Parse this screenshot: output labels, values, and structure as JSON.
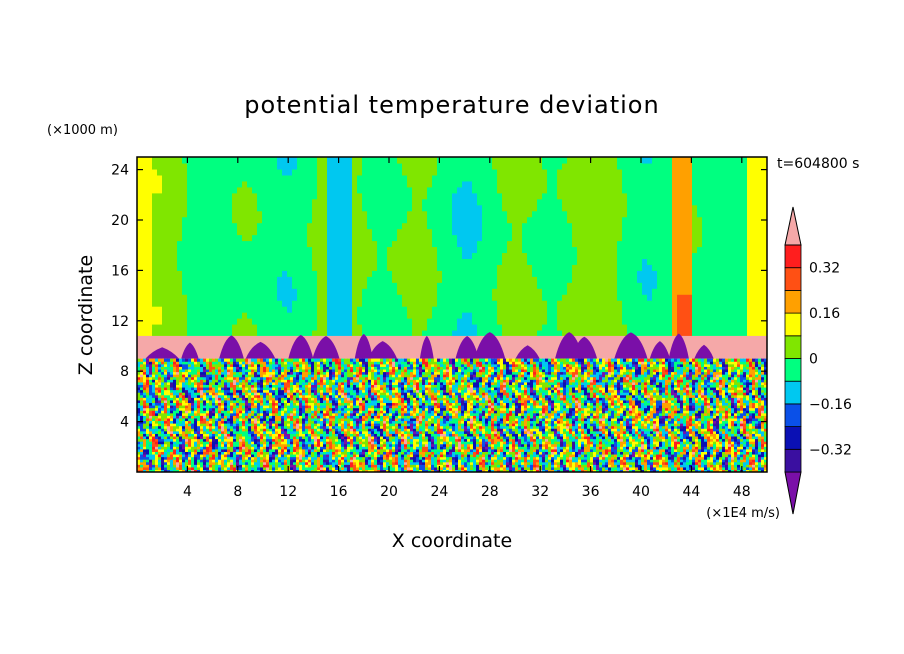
{
  "chart_data": {
    "type": "heatmap",
    "title": "potential temperature deviation",
    "xlabel": "X coordinate",
    "ylabel": "Z coordinate",
    "x_unit": "(×1E4 m/s)",
    "y_unit": "(×1000 m)",
    "time_label": "t=604800 s",
    "xlim": [
      0,
      50
    ],
    "ylim": [
      0,
      25
    ],
    "x_ticks": [
      4,
      8,
      12,
      16,
      20,
      24,
      28,
      32,
      36,
      40,
      44,
      48
    ],
    "y_ticks": [
      4,
      8,
      12,
      16,
      20,
      24
    ],
    "colorbar": {
      "levels": [
        -0.48,
        -0.4,
        -0.32,
        -0.24,
        -0.16,
        -0.08,
        0,
        0.08,
        0.16,
        0.24,
        0.32,
        0.4
      ],
      "colors": [
        "#7a0fa8",
        "#3a0fa0",
        "#0a10b4",
        "#0a50e8",
        "#00c8f0",
        "#00ff80",
        "#80e600",
        "#ffff00",
        "#ffa000",
        "#ff5014",
        "#ff1e1e",
        "#f5a8a8"
      ],
      "labels": [
        {
          "value": 0.32,
          "text": "0.32"
        },
        {
          "value": 0.16,
          "text": "0.16"
        },
        {
          "value": 0,
          "text": "0"
        },
        {
          "value": -0.16,
          "text": "−0.16"
        },
        {
          "value": -0.32,
          "text": "−0.32"
        }
      ]
    },
    "regions": {
      "stratosphere": {
        "z_range": [
          10.8,
          25
        ],
        "dominant_values": [
          0,
          0.05
        ],
        "features": [
          {
            "x_range": [
              0,
              1.2
            ],
            "value": 0.12
          },
          {
            "x_range": [
              48.6,
              50
            ],
            "value": 0.12
          },
          {
            "x_range": [
              42.5,
              44
            ],
            "value": 0.2
          },
          {
            "x_range": [
              15,
              17
            ],
            "value": -0.1
          }
        ]
      },
      "tropopause_band": {
        "z_range": [
          9,
          10.8
        ],
        "value": 0.4
      },
      "troposphere": {
        "z_range": [
          0,
          9
        ],
        "description_values": [
          -0.48,
          0.4
        ]
      }
    }
  }
}
